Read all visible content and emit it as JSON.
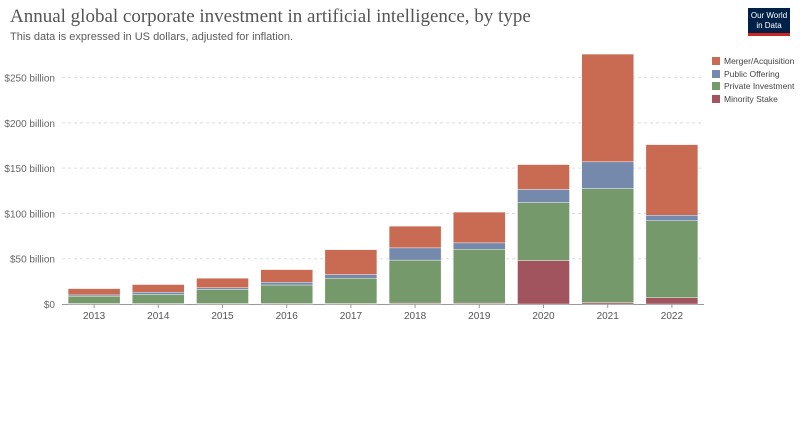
{
  "header": {
    "title": "Annual global corporate investment in artificial intelligence, by type",
    "subtitle": "This data is expressed in US dollars, adjusted for inflation.",
    "logo_line1": "Our World",
    "logo_line2": "in Data"
  },
  "chart_data": {
    "type": "bar",
    "stacked": true,
    "title": "Annual global corporate investment in artificial intelligence, by type",
    "subtitle": "This data is expressed in US dollars, adjusted for inflation.",
    "categories": [
      "2013",
      "2014",
      "2015",
      "2016",
      "2017",
      "2018",
      "2019",
      "2020",
      "2021",
      "2022"
    ],
    "ylim": [
      0,
      275000000000
    ],
    "yticks": [
      0,
      50000000000,
      100000000000,
      150000000000,
      200000000000,
      250000000000
    ],
    "ytick_labels": [
      "$0",
      "$50 billion",
      "$100 billion",
      "$150 billion",
      "$200 billion",
      "$250 billion"
    ],
    "grid": true,
    "legend_position": "top-right",
    "series": [
      {
        "name": "Minority Stake",
        "color": "#A2545E",
        "values": [
          500000000,
          500000000,
          500000000,
          500000000,
          500000000,
          1000000000,
          1000000000,
          48000000000,
          1500000000,
          7000000000
        ]
      },
      {
        "name": "Private Investment",
        "color": "#75996A",
        "values": [
          8000000000,
          10000000000,
          15500000000,
          20500000000,
          28000000000,
          47500000000,
          59500000000,
          64000000000,
          126000000000,
          85000000000
        ]
      },
      {
        "name": "Public Offering",
        "color": "#7589AC",
        "values": [
          1500000000,
          2500000000,
          2000000000,
          3000000000,
          4000000000,
          13500000000,
          7000000000,
          14500000000,
          29500000000,
          6000000000
        ]
      },
      {
        "name": "Merger/Acquisition",
        "color": "#C96B52",
        "values": [
          7000000000,
          8500000000,
          10500000000,
          14000000000,
          27500000000,
          24000000000,
          34000000000,
          27500000000,
          119000000000,
          78000000000
        ]
      }
    ],
    "legend_order": [
      "Merger/Acquisition",
      "Public Offering",
      "Private Investment",
      "Minority Stake"
    ]
  }
}
